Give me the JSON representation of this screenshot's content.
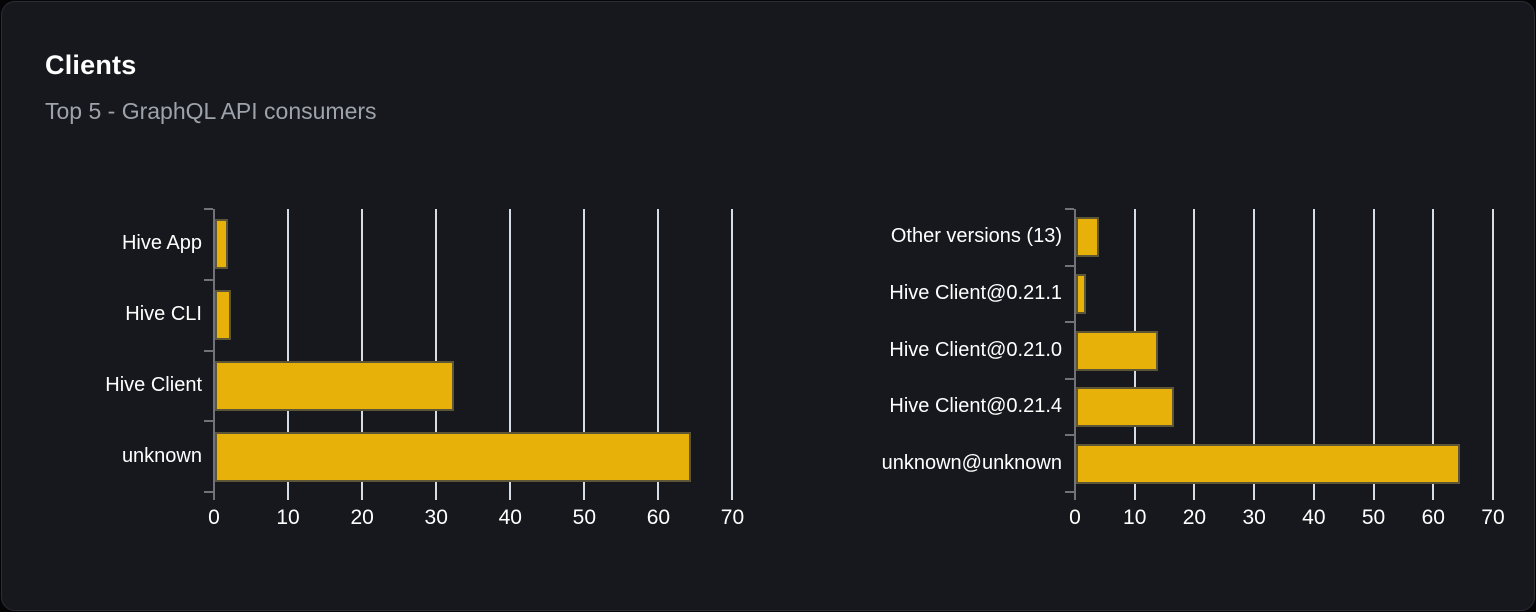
{
  "panel": {
    "title": "Clients",
    "subtitle": "Top 5 - GraphQL API consumers"
  },
  "colors": {
    "card_background": "#16181d",
    "card_border": "#2a2d34",
    "bar_fill": "#e7b109",
    "bar_border": "#5c5536",
    "gridline": "#d6dce6",
    "axis_line": "#71717a",
    "category_label": "#ffffff",
    "tick_label": "#ffffff",
    "title_color": "#ffffff",
    "subtitle_color": "#9ea3ab"
  },
  "chart_data": [
    {
      "type": "bar",
      "orientation": "horizontal",
      "categories": [
        "Hive App",
        "Hive CLI",
        "Hive Client",
        "unknown"
      ],
      "values": [
        1.7,
        2.2,
        32.2,
        64.3
      ],
      "xlim": [
        0,
        70
      ],
      "xticks": [
        0,
        10,
        20,
        30,
        40,
        50,
        60,
        70
      ],
      "grid": true,
      "legend": false
    },
    {
      "type": "bar",
      "orientation": "horizontal",
      "categories": [
        "Other versions (13)",
        "Hive Client@0.21.1",
        "Hive Client@0.21.0",
        "Hive Client@0.21.4",
        "unknown@unknown"
      ],
      "values": [
        3.9,
        1.7,
        13.7,
        16.4,
        64.3
      ],
      "xlim": [
        0,
        70
      ],
      "xticks": [
        0,
        10,
        20,
        30,
        40,
        50,
        60,
        70
      ],
      "grid": true,
      "legend": false
    }
  ]
}
